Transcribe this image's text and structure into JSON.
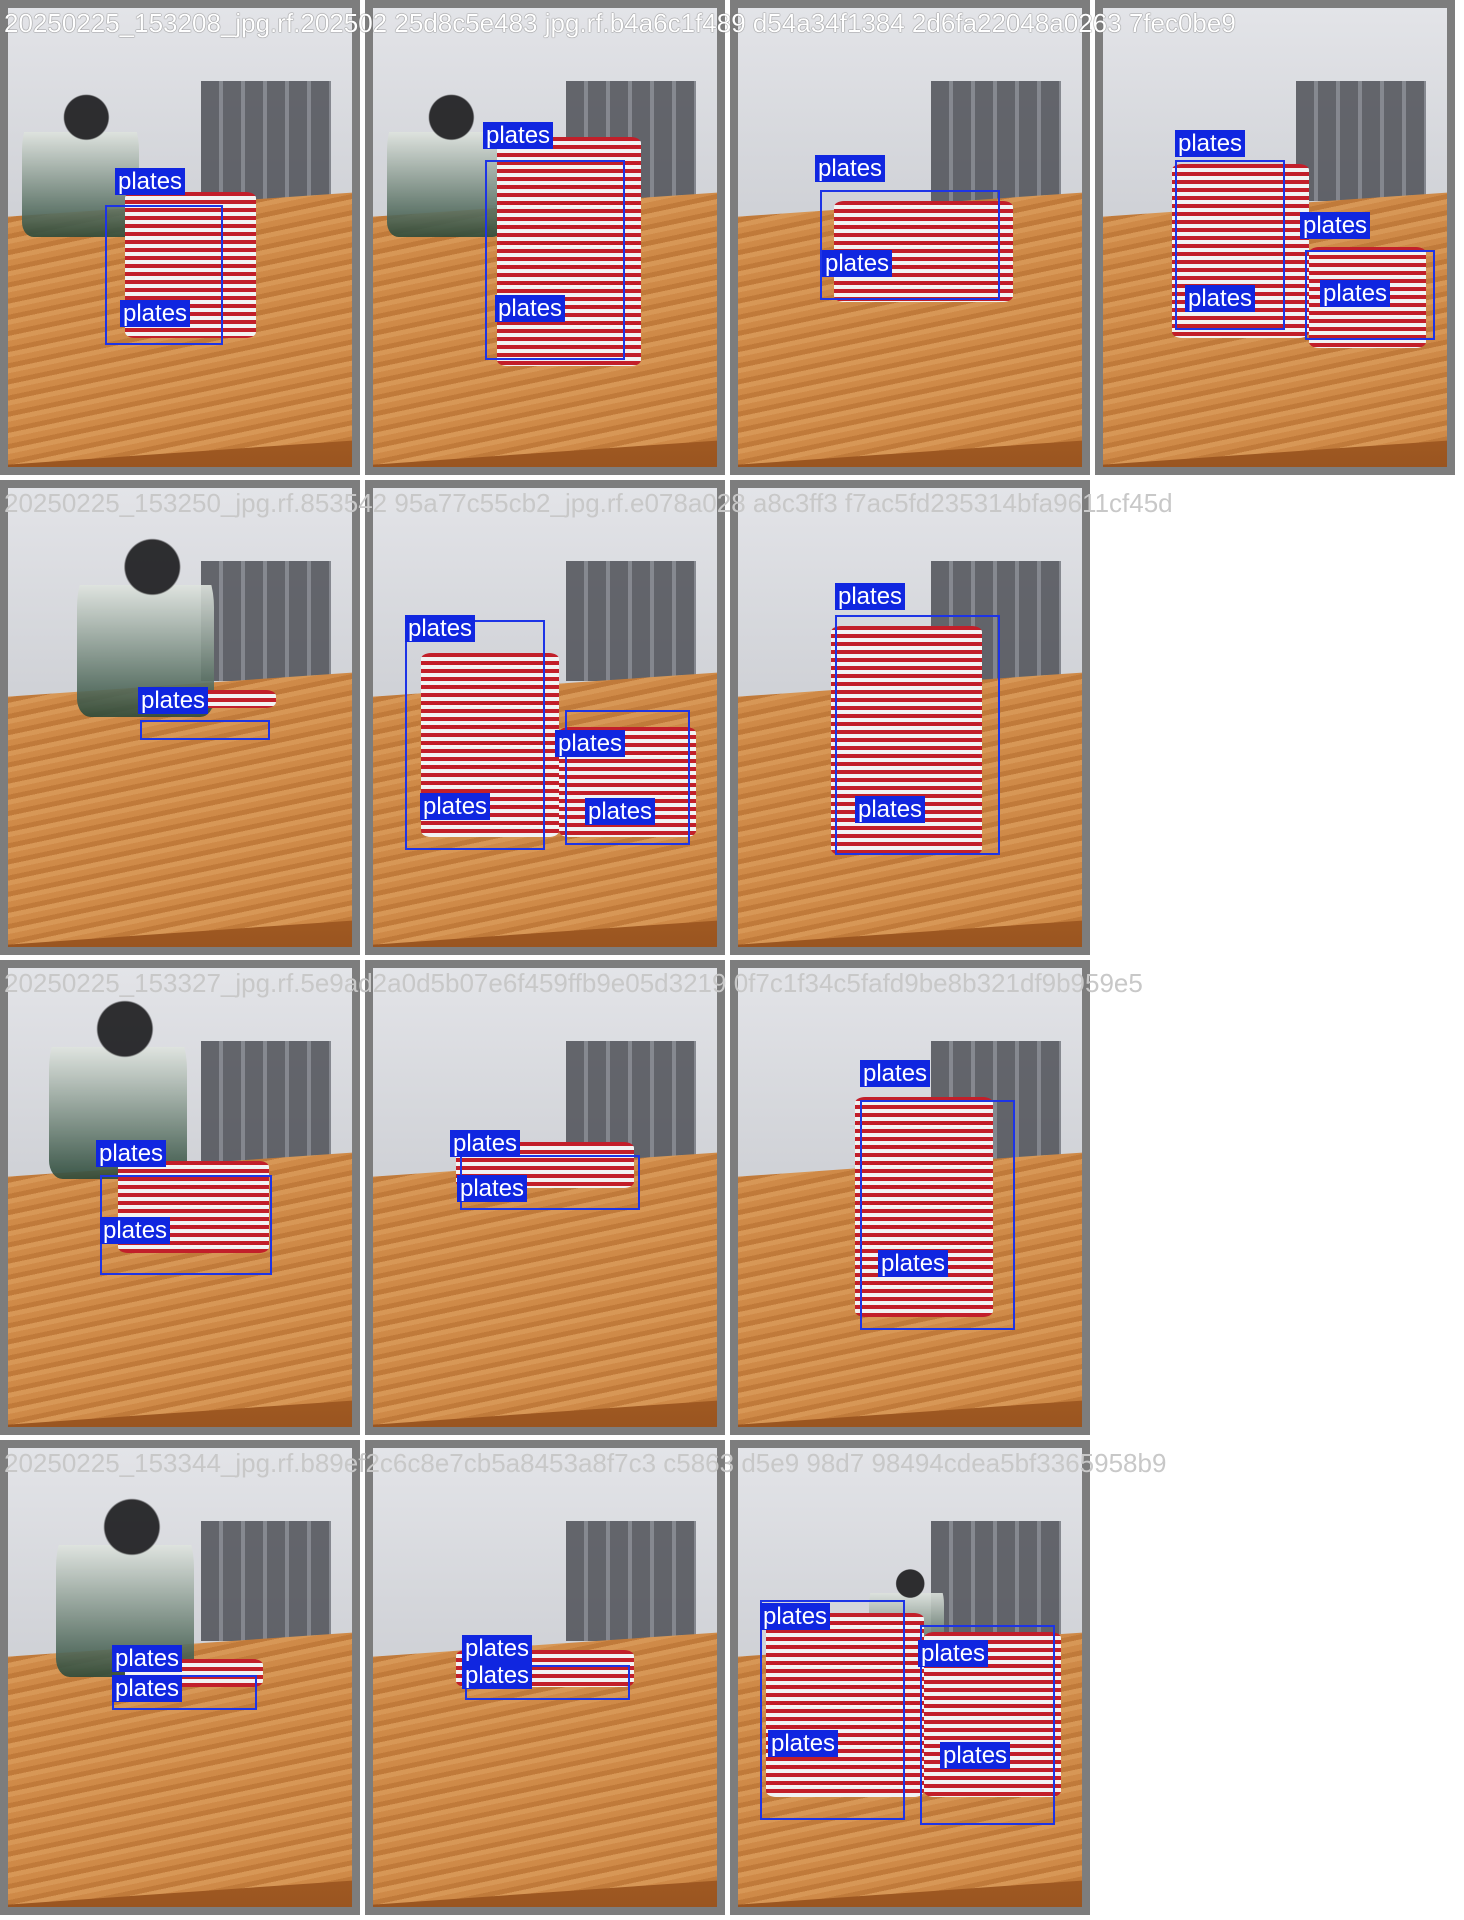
{
  "captions": [
    "20250225_153208_jpg.rf.202502 25d8c5e483 jpg.rf.b4a6c1f489 d54a34f1384 2d6fa22048a0263 7fec0be9",
    "20250225_153250_jpg.rf.853542 95a77c55cb2_jpg.rf.e078a028 a8c3ff3 f7ac5fd235314bfa9611cf45d",
    "20250225_153327_jpg.rf.5e9ad2a0d5b07e6f459ffb9e05d3219 0f7c1f34c5fafd9be8b321df9b959e5",
    "20250225_153344_jpg.rf.b89ef2c6c8e7cb5a8453a8f7c3 c5863 d5e9 98d7 98494cdea5bf3365958b9"
  ],
  "label": "plates",
  "colors": {
    "box": "#1d34e6",
    "label_bg": "#1026e0",
    "tile_border": "#7d7d7d"
  }
}
